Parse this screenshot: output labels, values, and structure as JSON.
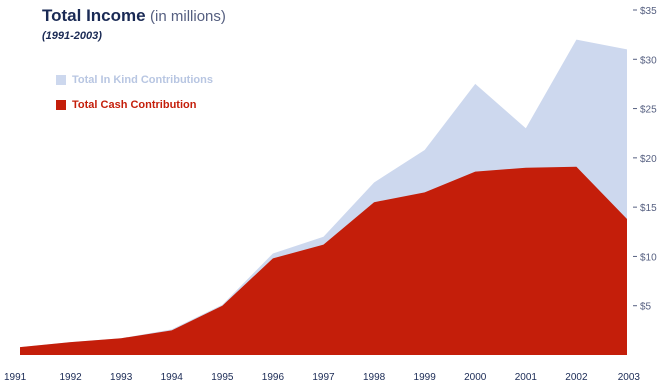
{
  "title": {
    "main": "Total Income",
    "unit": "(in millions)",
    "subtitle": "(1991-2003)"
  },
  "colors": {
    "in_kind": "#cdd8ee",
    "cash": "#c41e0a",
    "title": "#1a2a55",
    "axis_text": "#555f80"
  },
  "legend": [
    {
      "name": "Total In Kind Contributions",
      "color": "#cdd8ee",
      "text_color": "#b8c6e2"
    },
    {
      "name": "Total Cash Contribution",
      "color": "#c41e0a",
      "text_color": "#c41e0a"
    }
  ],
  "chart_data": {
    "type": "area",
    "title": "Total Income (in millions)",
    "subtitle": "(1991-2003)",
    "x": [
      "1991",
      "1992",
      "1993",
      "1994",
      "1995",
      "1996",
      "1997",
      "1998",
      "1999",
      "2000",
      "2001",
      "2002",
      "2003"
    ],
    "series": [
      {
        "name": "Total In Kind Contributions",
        "values": [
          0.8,
          1.3,
          1.7,
          2.6,
          5.1,
          10.3,
          12.0,
          17.5,
          20.8,
          27.5,
          23.0,
          32.0,
          31.0
        ]
      },
      {
        "name": "Total Cash Contribution",
        "values": [
          0.8,
          1.3,
          1.7,
          2.5,
          5.0,
          9.8,
          11.2,
          15.5,
          16.5,
          18.6,
          19.0,
          19.1,
          13.8
        ]
      }
    ],
    "y_ticks": [
      "$5",
      "$10",
      "$15",
      "$20",
      "$25",
      "$30",
      "$35"
    ],
    "ylim": [
      0,
      35
    ],
    "grid": false,
    "legend_position": "top-left",
    "y_axis_position": "right"
  }
}
